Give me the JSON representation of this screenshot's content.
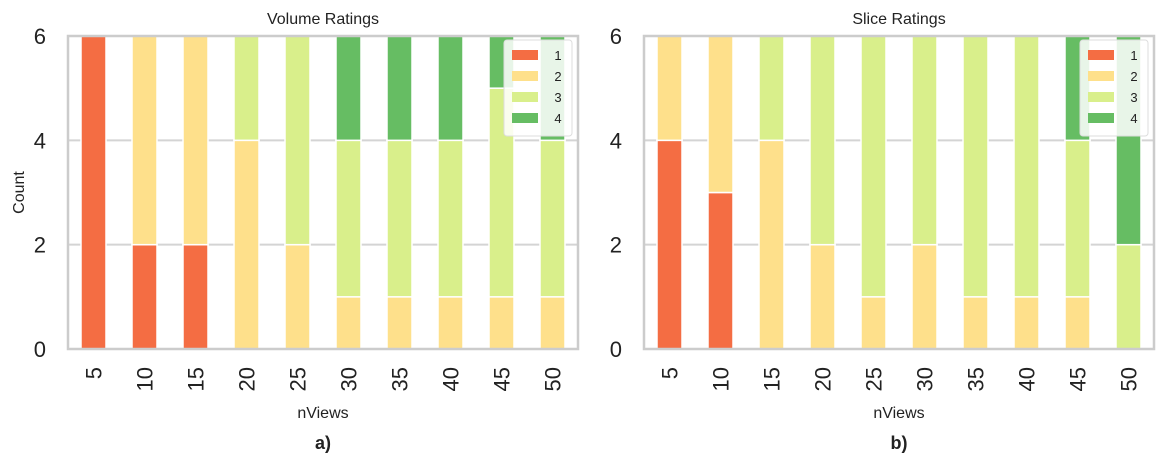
{
  "chart_data": [
    {
      "type": "bar",
      "stacked": true,
      "title": "Volume Ratings",
      "xlabel": "nViews",
      "ylabel": "Count",
      "sublabel": "a)",
      "categories": [
        "5",
        "10",
        "15",
        "20",
        "25",
        "30",
        "35",
        "40",
        "45",
        "50"
      ],
      "yticks": [
        "0",
        "2",
        "4",
        "6"
      ],
      "ylim": [
        0,
        6
      ],
      "grid": true,
      "legend_position": "top-right",
      "series": [
        {
          "name": "1",
          "color": "#f46d43",
          "values": [
            6,
            2,
            2,
            0,
            0,
            0,
            0,
            0,
            0,
            0
          ]
        },
        {
          "name": "2",
          "color": "#fee08b",
          "values": [
            0,
            4,
            4,
            4,
            2,
            1,
            1,
            1,
            1,
            1
          ]
        },
        {
          "name": "3",
          "color": "#d9ef8b",
          "values": [
            0,
            0,
            0,
            2,
            4,
            3,
            3,
            3,
            4,
            3
          ]
        },
        {
          "name": "4",
          "color": "#66bd63",
          "values": [
            0,
            0,
            0,
            0,
            0,
            2,
            2,
            2,
            1,
            2
          ]
        }
      ]
    },
    {
      "type": "bar",
      "stacked": true,
      "title": "Slice Ratings",
      "xlabel": "nViews",
      "ylabel": "",
      "sublabel": "b)",
      "categories": [
        "5",
        "10",
        "15",
        "20",
        "25",
        "30",
        "35",
        "40",
        "45",
        "50"
      ],
      "yticks": [
        "0",
        "2",
        "4",
        "6"
      ],
      "ylim": [
        0,
        6
      ],
      "grid": true,
      "legend_position": "top-right",
      "series": [
        {
          "name": "1",
          "color": "#f46d43",
          "values": [
            4,
            3,
            0,
            0,
            0,
            0,
            0,
            0,
            0,
            0
          ]
        },
        {
          "name": "2",
          "color": "#fee08b",
          "values": [
            2,
            3,
            4,
            2,
            1,
            2,
            1,
            1,
            1,
            0
          ]
        },
        {
          "name": "3",
          "color": "#d9ef8b",
          "values": [
            0,
            0,
            2,
            4,
            5,
            4,
            5,
            5,
            3,
            2
          ]
        },
        {
          "name": "4",
          "color": "#66bd63",
          "values": [
            0,
            0,
            0,
            0,
            0,
            0,
            0,
            0,
            2,
            4
          ]
        }
      ]
    }
  ]
}
